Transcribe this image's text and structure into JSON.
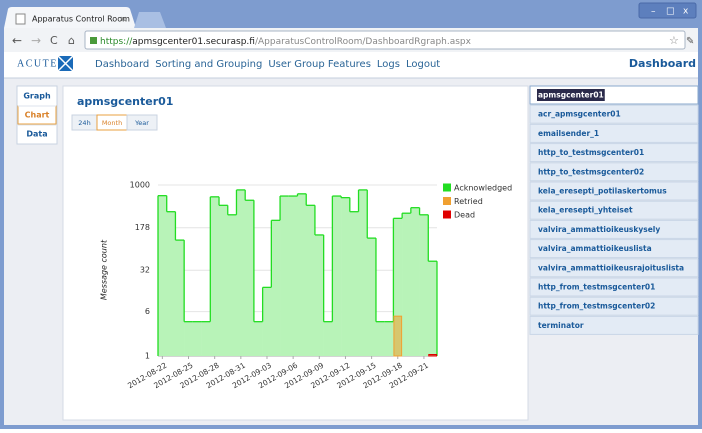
{
  "browser": {
    "tab_title": "Apparatus Control Room",
    "url_scheme": "https://",
    "url_host": "apmsgcenter01.securasp.fi",
    "url_path": "/ApparatusControlRoom/DashboardRgraph.aspx"
  },
  "nav": {
    "logo": "ACUTE",
    "links": [
      "Dashboard",
      "Sorting and Grouping",
      "User Group Features",
      "Logs",
      "Logout"
    ],
    "page_title": "Dashboard"
  },
  "side_tabs": [
    "Graph",
    "Chart",
    "Data"
  ],
  "range_buttons": [
    "24h",
    "Month",
    "Year"
  ],
  "chart_data": {
    "type": "area",
    "title": "apmsgcenter01",
    "ylabel": "Message count",
    "categories": [
      "2012-08-22",
      null,
      null,
      "2012-08-25",
      null,
      null,
      "2012-08-28",
      null,
      null,
      "2012-08-31",
      null,
      null,
      "2012-09-03",
      null,
      null,
      "2012-09-06",
      null,
      null,
      "2012-09-09",
      null,
      null,
      "2012-09-12",
      null,
      null,
      "2012-09-15",
      null,
      null,
      "2012-09-18",
      null,
      null,
      "2012-09-21",
      null
    ],
    "series": [
      {
        "name": "Acknowledged",
        "color": "#22dd22",
        "values": [
          650,
          340,
          108,
          4,
          4,
          4,
          620,
          440,
          300,
          820,
          540,
          4,
          16,
          240,
          640,
          640,
          700,
          440,
          133,
          4,
          640,
          600,
          340,
          820,
          117,
          4,
          4,
          260,
          320,
          400,
          300,
          46
        ]
      },
      {
        "name": "Retried",
        "color": "#f0a030",
        "values": [
          null,
          null,
          null,
          null,
          null,
          null,
          null,
          null,
          null,
          null,
          null,
          null,
          null,
          null,
          null,
          null,
          null,
          null,
          null,
          null,
          null,
          null,
          null,
          null,
          null,
          null,
          null,
          5,
          null,
          null,
          null,
          null
        ]
      },
      {
        "name": "Dead",
        "color": "#e00000",
        "values": [
          null,
          null,
          null,
          null,
          null,
          null,
          null,
          null,
          null,
          null,
          null,
          null,
          null,
          null,
          null,
          null,
          null,
          null,
          null,
          null,
          null,
          null,
          null,
          null,
          null,
          null,
          null,
          null,
          null,
          null,
          null,
          1
        ]
      }
    ],
    "ylim": [
      1,
      1000
    ],
    "yticks": [
      1,
      6,
      32,
      178,
      1000
    ],
    "log_scale": true,
    "grid": true,
    "legend": "upper right"
  },
  "servers": [
    "apmsgcenter01",
    "acr_apmsgcenter01",
    "emailsender_1",
    "http_to_testmsgcenter01",
    "http_to_testmsgcenter02",
    "kela_eresepti_potilaskertomus",
    "kela_eresepti_yhteiset",
    "valvira_ammattioikeuskysely",
    "valvira_ammattioikeuslista",
    "valvira_ammattioikeusrajoituslista",
    "http_from_testmsgcenter01",
    "http_from_testmsgcenter02",
    "terminator"
  ]
}
